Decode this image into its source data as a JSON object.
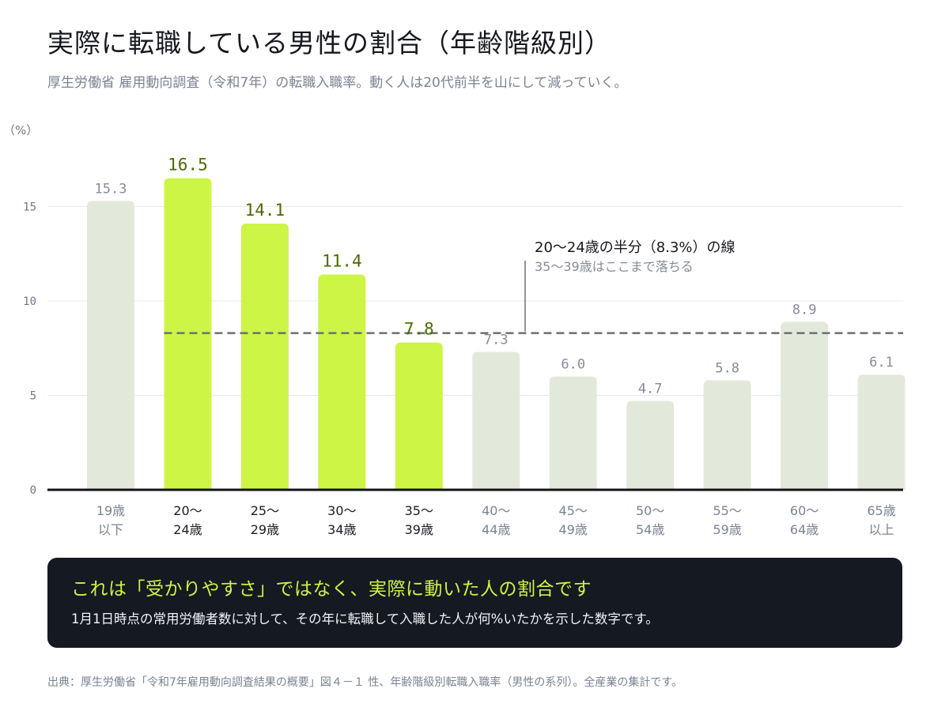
{
  "header": {
    "title": "実際に転職している男性の割合（年齢階級別）",
    "subtitle": "厚生労働省 雇用動向調査（令和7年）の転職入職率。動く人は20代前半を山にして減っていく。"
  },
  "chart_data": {
    "type": "bar",
    "unit_label": "（%）",
    "categories": [
      [
        "19歳",
        "以下"
      ],
      [
        "20〜",
        "24歳"
      ],
      [
        "25〜",
        "29歳"
      ],
      [
        "30〜",
        "34歳"
      ],
      [
        "35〜",
        "39歳"
      ],
      [
        "40〜",
        "44歳"
      ],
      [
        "45〜",
        "49歳"
      ],
      [
        "50〜",
        "54歳"
      ],
      [
        "55〜",
        "59歳"
      ],
      [
        "60〜",
        "64歳"
      ],
      [
        "65歳",
        "以上"
      ]
    ],
    "values": [
      15.3,
      16.5,
      14.1,
      11.4,
      7.8,
      7.3,
      6.0,
      4.7,
      5.8,
      8.9,
      6.1
    ],
    "value_labels": [
      "15.3",
      "16.5",
      "14.1",
      "11.4",
      "7.8",
      "7.3",
      "6.0",
      "4.7",
      "5.8",
      "8.9",
      "6.1"
    ],
    "highlighted": [
      false,
      true,
      true,
      true,
      true,
      false,
      false,
      false,
      false,
      false,
      false
    ],
    "ylim": [
      0,
      17
    ],
    "yticks": [
      0,
      5,
      10,
      15
    ],
    "grid": true,
    "reference_line": {
      "value": 8.3,
      "label": "20〜24歳の半分（8.3%）の線",
      "sublabel": "35〜39歳はここまで落ちる"
    },
    "colors": {
      "highlight": "#ccf545",
      "muted": "#e3e9da",
      "highlight_label": "#4a6b00",
      "muted_label": "#858c99",
      "highlight_category": "#1a1d24",
      "muted_category": "#7a8392",
      "reference": "#6b6f75"
    }
  },
  "callout": {
    "title": "これは「受かりやすさ」ではなく、実際に動いた人の割合です",
    "body": "1月1日時点の常用労働者数に対して、その年に転職して入職した人が何%いたかを示した数字です。"
  },
  "source": "出典：厚生労働省「令和7年雇用動向調査結果の概要」図４－１ 性、年齢階級別転職入職率（男性の系列）。全産業の集計です。"
}
